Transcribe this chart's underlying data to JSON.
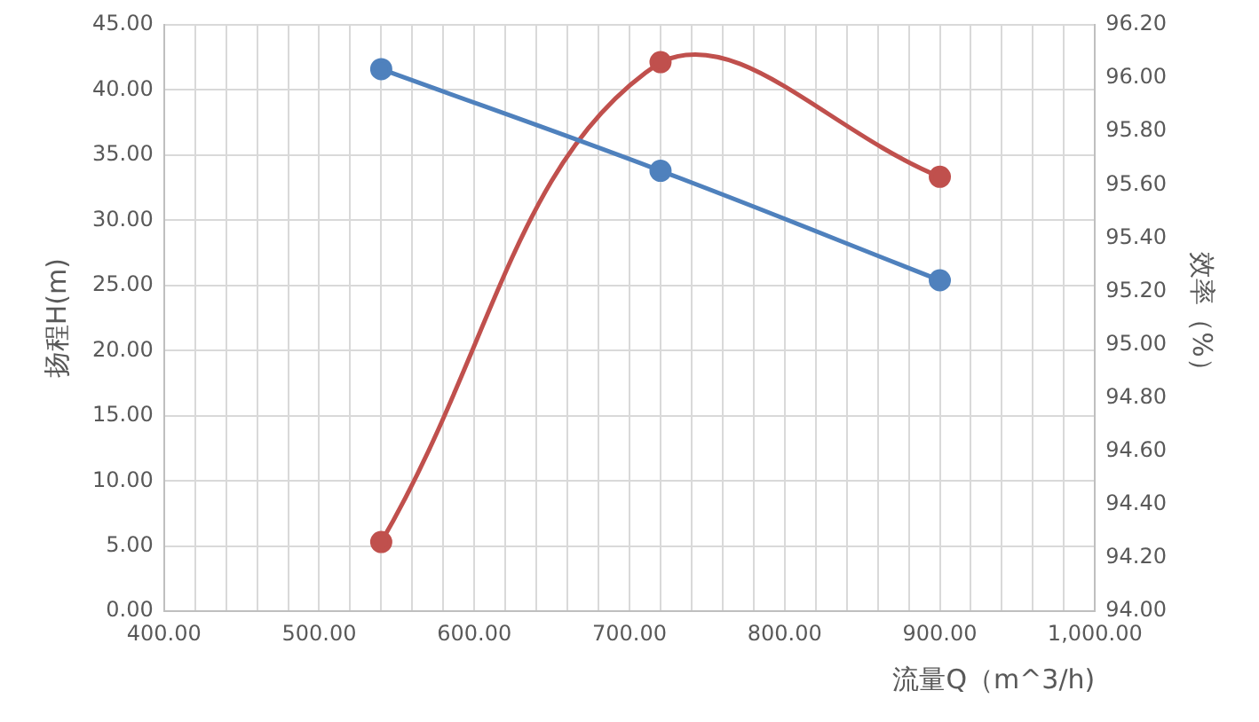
{
  "chart_data": {
    "type": "line",
    "xlabel": "流量Q（m^3/h)",
    "ylabel": "扬程H(m)",
    "y2label": "效率（%）",
    "x": [
      540,
      720,
      900
    ],
    "series": [
      {
        "color": "#4f81bd",
        "values": [
          41.6,
          33.8,
          25.4
        ]
      },
      {
        "color": "#c0504d",
        "values": [
          94.26,
          96.06,
          95.63
        ],
        "axis": "y2"
      }
    ],
    "xlim": [
      400,
      1000
    ],
    "xticks": [
      {
        "value": 400,
        "label": "400.00"
      },
      {
        "value": 420,
        "label": null
      },
      {
        "value": 440,
        "label": null
      },
      {
        "value": 460,
        "label": null
      },
      {
        "value": 480,
        "label": null
      },
      {
        "value": 500,
        "label": "500.00"
      },
      {
        "value": 520,
        "label": null
      },
      {
        "value": 540,
        "label": null
      },
      {
        "value": 560,
        "label": null
      },
      {
        "value": 580,
        "label": null
      },
      {
        "value": 600,
        "label": "600.00"
      },
      {
        "value": 620,
        "label": null
      },
      {
        "value": 640,
        "label": null
      },
      {
        "value": 660,
        "label": null
      },
      {
        "value": 680,
        "label": null
      },
      {
        "value": 700,
        "label": "700.00"
      },
      {
        "value": 720,
        "label": null
      },
      {
        "value": 740,
        "label": null
      },
      {
        "value": 760,
        "label": null
      },
      {
        "value": 780,
        "label": null
      },
      {
        "value": 800,
        "label": "800.00"
      },
      {
        "value": 820,
        "label": null
      },
      {
        "value": 840,
        "label": null
      },
      {
        "value": 860,
        "label": null
      },
      {
        "value": 880,
        "label": null
      },
      {
        "value": 900,
        "label": "900.00"
      },
      {
        "value": 920,
        "label": null
      },
      {
        "value": 940,
        "label": null
      },
      {
        "value": 960,
        "label": null
      },
      {
        "value": 980,
        "label": null
      },
      {
        "value": 1000,
        "label": "1,000.00"
      }
    ],
    "ylim": [
      0,
      45
    ],
    "yticks": [
      {
        "value": 0,
        "label": "0.00"
      },
      {
        "value": 5,
        "label": "5.00"
      },
      {
        "value": 10,
        "label": "10.00"
      },
      {
        "value": 15,
        "label": "15.00"
      },
      {
        "value": 20,
        "label": "20.00"
      },
      {
        "value": 25,
        "label": "25.00"
      },
      {
        "value": 30,
        "label": "30.00"
      },
      {
        "value": 35,
        "label": "35.00"
      },
      {
        "value": 40,
        "label": "40.00"
      },
      {
        "value": 45,
        "label": "45.00"
      }
    ],
    "y2lim": [
      94,
      96.2
    ],
    "y2ticks": [
      {
        "value": 94,
        "label": "94.00"
      },
      {
        "value": 94.2,
        "label": "94.20"
      },
      {
        "value": 94.4,
        "label": "94.40"
      },
      {
        "value": 94.6,
        "label": "94.60"
      },
      {
        "value": 94.8,
        "label": "94.80"
      },
      {
        "value": 95,
        "label": "95.00"
      },
      {
        "value": 95.2,
        "label": "95.20"
      },
      {
        "value": 95.4,
        "label": "95.40"
      },
      {
        "value": 95.6,
        "label": "95.60"
      },
      {
        "value": 95.8,
        "label": "95.80"
      },
      {
        "value": 96,
        "label": "96.00"
      },
      {
        "value": 96.2,
        "label": "96.20"
      }
    ],
    "grid": true,
    "legend": false,
    "marker": "circle",
    "line_style": "solid"
  }
}
